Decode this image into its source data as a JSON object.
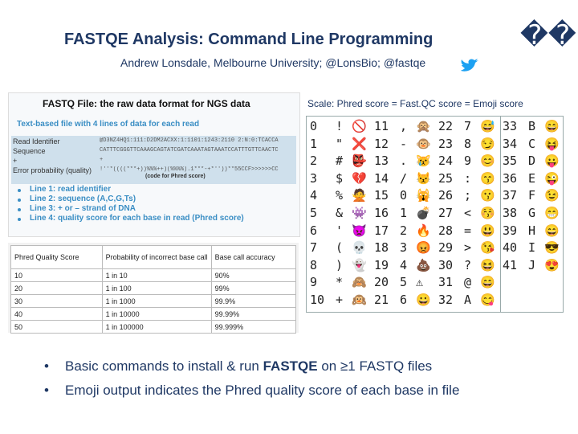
{
  "header": {
    "title": "FASTQE Analysis: Command Line Programming",
    "title_glyphs": "��",
    "subtitle": "Andrew Lonsdale, Melbourne University; @LonsBio; @fastqe"
  },
  "fastq_panel": {
    "heading": "FASTQ File: the raw data format for NGS data",
    "intro": "Text-based file with 4 lines of data for each read",
    "lines": [
      [
        "Read Identifier",
        "@D3NZ4HQ1:111:D2DM2ACXX:1:1101:1243:2110 2:N:0:TCACCA"
      ],
      [
        "Sequence",
        "CATTTCGGGTTCAAAGCAGTATCGATCAAATAGTAAATCCATTTGTTCAACTC"
      ],
      [
        "+",
        "+"
      ],
      [
        "Error probability (quality)",
        "!''*((((***+))%%%++)(%%%%).1***-+*''))**55CCF>>>>>>CC"
      ]
    ],
    "note": "(code for Phred score)",
    "bullets": [
      "Line 1: read identifier",
      "Line 2: sequence (A,C,G,Ts)",
      "Line 3: + or – strand of DNA",
      "Line 4: quality score for each base in read (Phred score)"
    ]
  },
  "phred_table": {
    "header": [
      "Phred Quality Score",
      "Probability of incorrect base call",
      "Base call accuracy"
    ],
    "rows": [
      [
        "10",
        "1 in 10",
        "90%"
      ],
      [
        "20",
        "1 in 100",
        "99%"
      ],
      [
        "30",
        "1 in 1000",
        "99.9%"
      ],
      [
        "40",
        "1 in 10000",
        "99.99%"
      ],
      [
        "50",
        "1 in 100000",
        "99.999%"
      ]
    ]
  },
  "emoji_scale": {
    "caption": "Scale: Phred score = Fast.QC score = Emoji score",
    "rows": [
      [
        "0",
        "!",
        "🚫"
      ],
      [
        "1",
        "\"",
        "❌"
      ],
      [
        "2",
        "#",
        "👺"
      ],
      [
        "3",
        "$",
        "💔"
      ],
      [
        "4",
        "%",
        "🙅"
      ],
      [
        "5",
        "&",
        "👾"
      ],
      [
        "6",
        "'",
        "👿"
      ],
      [
        "7",
        "(",
        "💀"
      ],
      [
        "8",
        ")",
        "👻"
      ],
      [
        "9",
        "*",
        "🙈"
      ],
      [
        "10",
        "+",
        "🙉"
      ],
      [
        "11",
        ",",
        "🙊"
      ],
      [
        "12",
        "-",
        "🐵"
      ],
      [
        "13",
        ".",
        "😿"
      ],
      [
        "14",
        "/",
        "😾"
      ],
      [
        "15",
        "0",
        "🙀"
      ],
      [
        "16",
        "1",
        "💣"
      ],
      [
        "17",
        "2",
        "🔥"
      ],
      [
        "18",
        "3",
        "😡"
      ],
      [
        "19",
        "4",
        "💩"
      ],
      [
        "20",
        "5",
        "⚠"
      ],
      [
        "21",
        "6",
        "😀"
      ],
      [
        "22",
        "7",
        "😅"
      ],
      [
        "23",
        "8",
        "😏"
      ],
      [
        "24",
        "9",
        "😊"
      ],
      [
        "25",
        ":",
        "😙"
      ],
      [
        "26",
        ";",
        "😗"
      ],
      [
        "27",
        "<",
        "😚"
      ],
      [
        "28",
        "=",
        "😃"
      ],
      [
        "29",
        ">",
        "😘"
      ],
      [
        "30",
        "?",
        "😆"
      ],
      [
        "31",
        "@",
        "😄"
      ],
      [
        "32",
        "A",
        "😋"
      ],
      [
        "33",
        "B",
        "😄"
      ],
      [
        "34",
        "C",
        "😝"
      ],
      [
        "35",
        "D",
        "😛"
      ],
      [
        "36",
        "E",
        "😜"
      ],
      [
        "37",
        "F",
        "😉"
      ],
      [
        "38",
        "G",
        "😁"
      ],
      [
        "39",
        "H",
        "😄"
      ],
      [
        "40",
        "I",
        "😎"
      ],
      [
        "41",
        "J",
        "😍"
      ]
    ]
  },
  "bullets": [
    [
      "Basic commands to install & run ",
      "FASTQE",
      " on ≥1 FASTQ files"
    ],
    [
      "Emoji output indicates the Phred quality score of each base in file"
    ]
  ]
}
